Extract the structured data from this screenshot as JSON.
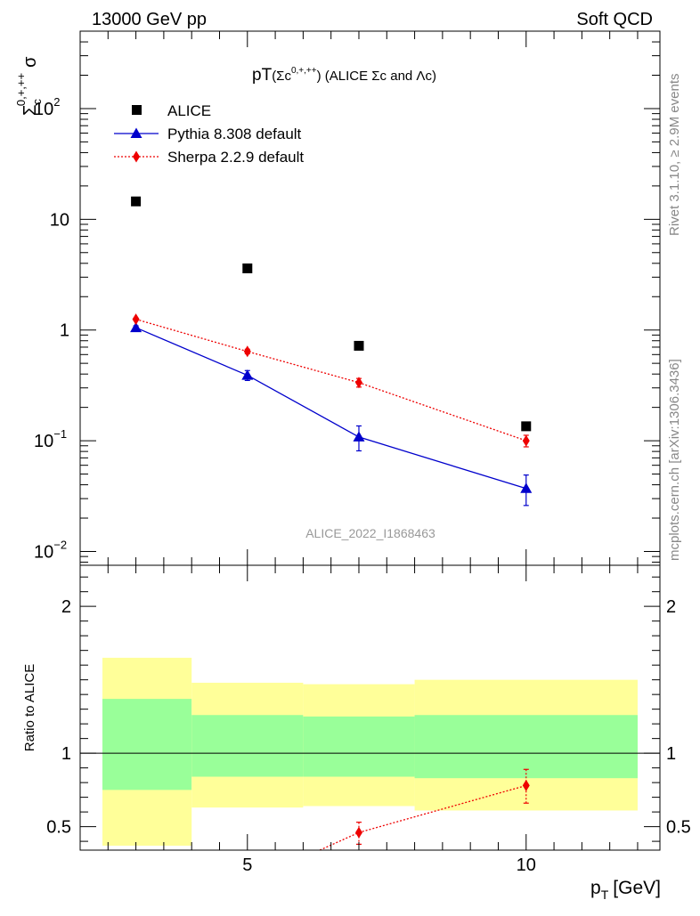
{
  "header": {
    "left": "13000 GeV pp",
    "right": "Soft QCD"
  },
  "side_labels": {
    "rivet": "Rivet 3.1.10, ≥ 2.9M events",
    "mcplots": "mcplots.cern.ch [arXiv:1306.3436]"
  },
  "analysis_tag": "ALICE_2022_I1868463",
  "colors": {
    "alice": "#000000",
    "pythia": "#0000cc",
    "sherpa": "#ee0000",
    "band_inner": "#99ff99",
    "band_outer": "#ffff99"
  },
  "chart_data": [
    {
      "type": "scatter",
      "title": "pT(Σc0,+,++) (ALICE Σc and Λc)",
      "title_main": "pT",
      "title_paren_open": "(Σc",
      "title_sup": "0,+,++",
      "title_paren_close": ") (ALICE Σc and Λc)",
      "ylabel": "Σc0,+,++ σ",
      "ylabel_base": "Σ",
      "ylabel_sub": "c",
      "ylabel_sup": "0,+,++",
      "ylabel_end": "σ",
      "yscale": "log",
      "xlim": [
        2,
        12.4
      ],
      "ylim": [
        0.0075,
        500
      ],
      "y_ticks": [
        {
          "value": 0.01,
          "base": "10",
          "exp": "−2"
        },
        {
          "value": 0.1,
          "base": "10",
          "exp": "−1"
        },
        {
          "value": 1,
          "base": "1",
          "exp": ""
        },
        {
          "value": 10,
          "base": "10",
          "exp": ""
        },
        {
          "value": 100,
          "base": "10",
          "exp": "2"
        }
      ],
      "legend_placement": "top-left",
      "series": [
        {
          "name": "ALICE",
          "marker": "square",
          "x": [
            3,
            5,
            7,
            10
          ],
          "y": [
            14.5,
            3.6,
            0.72,
            0.135
          ]
        },
        {
          "name": "Pythia 8.308 default",
          "marker": "triangle",
          "line": "solid",
          "x": [
            3,
            5,
            7,
            10
          ],
          "y": [
            1.05,
            0.39,
            0.108,
            0.037
          ],
          "err_low": [
            0.04,
            0.04,
            0.027,
            0.011
          ],
          "err_high": [
            0.04,
            0.04,
            0.028,
            0.012
          ]
        },
        {
          "name": "Sherpa 2.2.9 default",
          "marker": "diamond",
          "line": "dotted",
          "x": [
            3,
            5,
            7,
            10
          ],
          "y": [
            1.25,
            0.64,
            0.335,
            0.1
          ],
          "err_low": [
            0.03,
            0.03,
            0.03,
            0.012
          ],
          "err_high": [
            0.03,
            0.03,
            0.03,
            0.012
          ]
        }
      ]
    },
    {
      "type": "scatter",
      "ylabel": "Ratio to ALICE",
      "xlabel": "pT [GeV]",
      "xlabel_base": "p",
      "xlabel_sub": "T",
      "xlabel_unit": "[GeV]",
      "xlim": [
        2,
        12.4
      ],
      "ylim": [
        0.34,
        2.28
      ],
      "x_ticks": [
        5,
        10
      ],
      "y_ticks": [
        0.5,
        1,
        2
      ],
      "reference": 1,
      "bands": [
        {
          "x0": 2,
          "x1": 4,
          "inner": [
            0.75,
            1.37
          ],
          "outer": [
            0.37,
            1.65
          ]
        },
        {
          "x0": 4,
          "x1": 6,
          "inner": [
            0.84,
            1.26
          ],
          "outer": [
            0.63,
            1.48
          ]
        },
        {
          "x0": 6,
          "x1": 8,
          "inner": [
            0.84,
            1.25
          ],
          "outer": [
            0.64,
            1.47
          ]
        },
        {
          "x0": 8,
          "x1": 12,
          "inner": [
            0.83,
            1.26
          ],
          "outer": [
            0.61,
            1.5
          ]
        }
      ],
      "series": [
        {
          "name": "Sherpa 2.2.9 default",
          "marker": "diamond",
          "line": "dotted",
          "x": [
            6.3,
            7,
            10
          ],
          "y": [
            0.3,
            0.46,
            0.78
          ],
          "draw_marker": [
            false,
            true,
            true
          ],
          "err_low": [
            0,
            0.08,
            0.12
          ],
          "err_high": [
            0,
            0.07,
            0.11
          ]
        }
      ]
    }
  ]
}
